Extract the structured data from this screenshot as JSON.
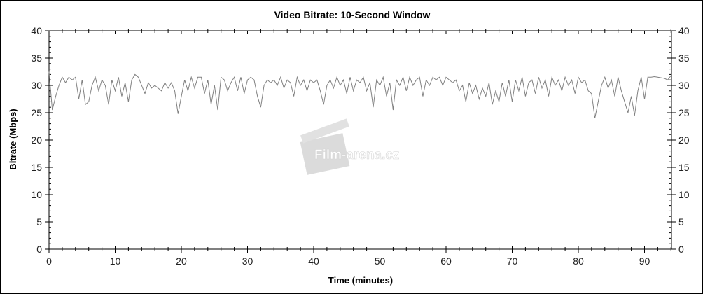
{
  "chart_data": {
    "type": "line",
    "title": "Video Bitrate: 10-Second Window",
    "xlabel": "Time (minutes)",
    "ylabel": "Bitrate (Mbps)",
    "xlim": [
      0,
      94.2
    ],
    "ylim": [
      0,
      40
    ],
    "x_ticks": [
      0,
      10,
      20,
      30,
      40,
      50,
      60,
      70,
      80,
      90
    ],
    "y_ticks": [
      0,
      5,
      10,
      15,
      20,
      25,
      30,
      35,
      40
    ],
    "y_ticks_right": [
      0,
      5,
      10,
      15,
      20,
      25,
      30,
      35,
      40
    ],
    "grid": false,
    "line_color": "#808080",
    "watermark": "Film-arena.cz",
    "x": [
      0,
      0.5,
      1,
      1.5,
      2,
      2.5,
      3,
      3.5,
      4,
      4.5,
      5,
      5.5,
      6,
      6.5,
      7,
      7.5,
      8,
      8.5,
      9,
      9.5,
      10,
      10.5,
      11,
      11.5,
      12,
      12.5,
      13,
      13.5,
      14,
      14.5,
      15,
      15.5,
      16,
      16.5,
      17,
      17.5,
      18,
      18.5,
      19,
      19.5,
      20,
      20.5,
      21,
      21.5,
      22,
      22.5,
      23,
      23.5,
      24,
      24.5,
      25,
      25.5,
      26,
      26.5,
      27,
      27.5,
      28,
      28.5,
      29,
      29.5,
      30,
      30.5,
      31,
      31.5,
      32,
      32.5,
      33,
      33.5,
      34,
      34.5,
      35,
      35.5,
      36,
      36.5,
      37,
      37.5,
      38,
      38.5,
      39,
      39.5,
      40,
      40.5,
      41,
      41.5,
      42,
      42.5,
      43,
      43.5,
      44,
      44.5,
      45,
      45.5,
      46,
      46.5,
      47,
      47.5,
      48,
      48.5,
      49,
      49.5,
      50,
      50.5,
      51,
      51.5,
      52,
      52.5,
      53,
      53.5,
      54,
      54.5,
      55,
      55.5,
      56,
      56.5,
      57,
      57.5,
      58,
      58.5,
      59,
      59.5,
      60,
      60.5,
      61,
      61.5,
      62,
      62.5,
      63,
      63.5,
      64,
      64.5,
      65,
      65.5,
      66,
      66.5,
      67,
      67.5,
      68,
      68.5,
      69,
      69.5,
      70,
      70.5,
      71,
      71.5,
      72,
      72.5,
      73,
      73.5,
      74,
      74.5,
      75,
      75.5,
      76,
      76.5,
      77,
      77.5,
      78,
      78.5,
      79,
      79.5,
      80,
      80.5,
      81,
      81.5,
      82,
      82.5,
      83,
      83.5,
      84,
      84.5,
      85,
      85.5,
      86,
      86.5,
      87,
      87.5,
      88,
      88.5,
      89,
      89.5,
      90,
      90.5,
      91,
      91.5,
      92,
      92.5,
      93,
      93.5,
      94
    ],
    "y": [
      32.5,
      25.5,
      28,
      30,
      31.5,
      30.5,
      31.5,
      31,
      31.5,
      27.5,
      31,
      26.5,
      27,
      30,
      31.5,
      29,
      31,
      30,
      26.5,
      31,
      29,
      31.5,
      28,
      30.5,
      27,
      31,
      32,
      31.5,
      30,
      28.5,
      30.5,
      29.5,
      30,
      29.5,
      29,
      30.5,
      29.5,
      30.5,
      29,
      24.8,
      28,
      31,
      29,
      31.5,
      29.5,
      31.5,
      31.5,
      28.5,
      31,
      26.5,
      30,
      25.5,
      31.5,
      31,
      29,
      30.5,
      31.5,
      29,
      31.5,
      28.5,
      31,
      31.5,
      31,
      28,
      26,
      30,
      31,
      30.5,
      31,
      30,
      31.5,
      29.5,
      31,
      30.5,
      28,
      31.5,
      30,
      31,
      29,
      31,
      30.5,
      31,
      29,
      26.5,
      30,
      31,
      29.5,
      31.5,
      30,
      31,
      28.5,
      31.5,
      29,
      31,
      30.5,
      31.5,
      29,
      30.5,
      26,
      31,
      30,
      31.5,
      28,
      30.5,
      25.5,
      31,
      30,
      31.5,
      29,
      31.5,
      30,
      31,
      31.5,
      28,
      31,
      30,
      31.5,
      31,
      31.5,
      30,
      31.5,
      31,
      30.5,
      31,
      29,
      30,
      27,
      30.5,
      28.5,
      30,
      27.5,
      29.5,
      28,
      30.5,
      26.5,
      29,
      27,
      30.5,
      28,
      31,
      27,
      31,
      29,
      31.5,
      28,
      30.5,
      31,
      28.5,
      31.5,
      29.5,
      31,
      28,
      31.5,
      30,
      31,
      29,
      31.5,
      30,
      31,
      28.5,
      31.5,
      30.5,
      31,
      29,
      28.5,
      24,
      27,
      30,
      31.5,
      29.5,
      31,
      28,
      31.5,
      29,
      27,
      25,
      28,
      24.5,
      29,
      31.5,
      27.5,
      31.5,
      31.5,
      31.6,
      31.5,
      31.4,
      31.3,
      31,
      31.8
    ]
  }
}
